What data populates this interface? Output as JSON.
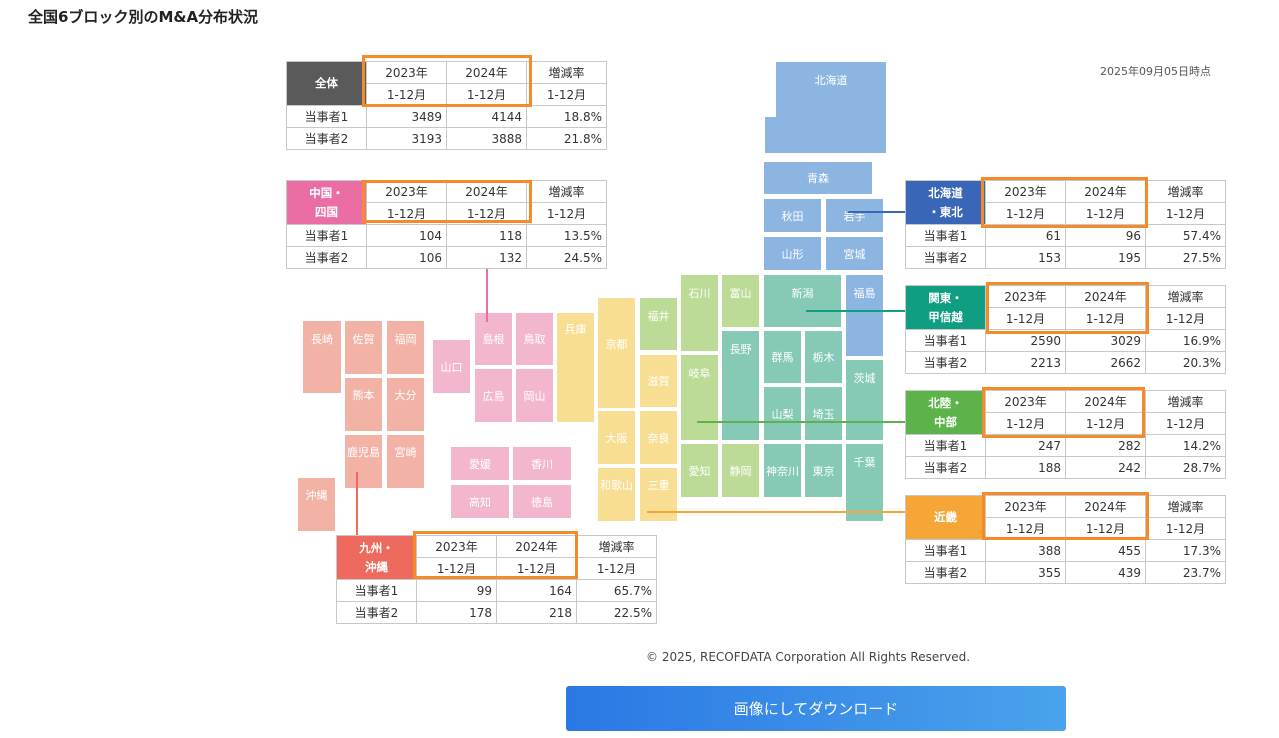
{
  "page": {
    "title": "全国6ブロック別のM&A分布状況",
    "as_of": "2025年09月05日時点",
    "copyright": "© 2025, RECOFDATA Corporation All Rights Reserved.",
    "download_label": "画像にしてダウンロード"
  },
  "table_headers": {
    "y2023": "2023年",
    "y2024": "2024年",
    "period": "1-12月",
    "change": "増減率",
    "row1": "当事者1",
    "row2": "当事者2"
  },
  "colors": {
    "zentai": "#5a5a5a",
    "hokkaido_tohoku": "#3a66b8",
    "kanto": "#0f9e82",
    "chubu": "#5bb349",
    "kinki": "#f5a637",
    "chugoku_shikoku": "#ea6ea4",
    "kyushu": "#ee6a5f",
    "highlight": "#f68a28"
  },
  "blocks": {
    "zentai": {
      "name": "全体",
      "r1": [
        "3489",
        "4144",
        "18.8%"
      ],
      "r2": [
        "3193",
        "3888",
        "21.8%"
      ]
    },
    "chugoku": {
      "name": "中国・\n四国",
      "r1": [
        "104",
        "118",
        "13.5%"
      ],
      "r2": [
        "106",
        "132",
        "24.5%"
      ]
    },
    "hokkaido": {
      "name": "北海道\n・東北",
      "r1": [
        "61",
        "96",
        "57.4%"
      ],
      "r2": [
        "153",
        "195",
        "27.5%"
      ]
    },
    "kanto": {
      "name": "関東・\n甲信越",
      "r1": [
        "2590",
        "3029",
        "16.9%"
      ],
      "r2": [
        "2213",
        "2662",
        "20.3%"
      ]
    },
    "chubu": {
      "name": "北陸・\n中部",
      "r1": [
        "247",
        "282",
        "14.2%"
      ],
      "r2": [
        "188",
        "242",
        "28.7%"
      ]
    },
    "kinki": {
      "name": "近畿",
      "r1": [
        "388",
        "455",
        "17.3%"
      ],
      "r2": [
        "355",
        "439",
        "23.7%"
      ]
    },
    "kyushu": {
      "name": "九州・\n沖縄",
      "r1": [
        "99",
        "164",
        "65.7%"
      ],
      "r2": [
        "178",
        "218",
        "22.5%"
      ]
    }
  },
  "prefectures": {
    "hokkaido": "北海道",
    "aomori": "青森",
    "akita": "秋田",
    "iwate": "岩手",
    "yamagata": "山形",
    "miyagi": "宮城",
    "niigata": "新潟",
    "fukushima": "福島",
    "ishikawa": "石川",
    "toyama": "富山",
    "fukui": "福井",
    "nagano": "長野",
    "gunma": "群馬",
    "tochigi": "栃木",
    "ibaraki": "茨城",
    "yamanashi": "山梨",
    "saitama": "埼玉",
    "gifu": "岐阜",
    "aichi": "愛知",
    "shizuoka": "静岡",
    "kanagawa": "神奈川",
    "tokyo": "東京",
    "chiba": "千葉",
    "kyoto": "京都",
    "shiga": "滋賀",
    "osaka": "大阪",
    "nara": "奈良",
    "wakayama": "和歌山",
    "mie": "三重",
    "hyogo": "兵庫",
    "shimane": "島根",
    "tottori": "鳥取",
    "yamaguchi": "山口",
    "hiroshima": "広島",
    "okayama": "岡山",
    "ehime": "愛媛",
    "kagawa": "香川",
    "kochi": "高知",
    "tokushima": "徳島",
    "nagasaki": "長崎",
    "saga": "佐賀",
    "fukuoka": "福岡",
    "kumamoto": "熊本",
    "oita": "大分",
    "kagoshima": "鹿児島",
    "miyazaki": "宮崎",
    "okinawa": "沖縄"
  }
}
